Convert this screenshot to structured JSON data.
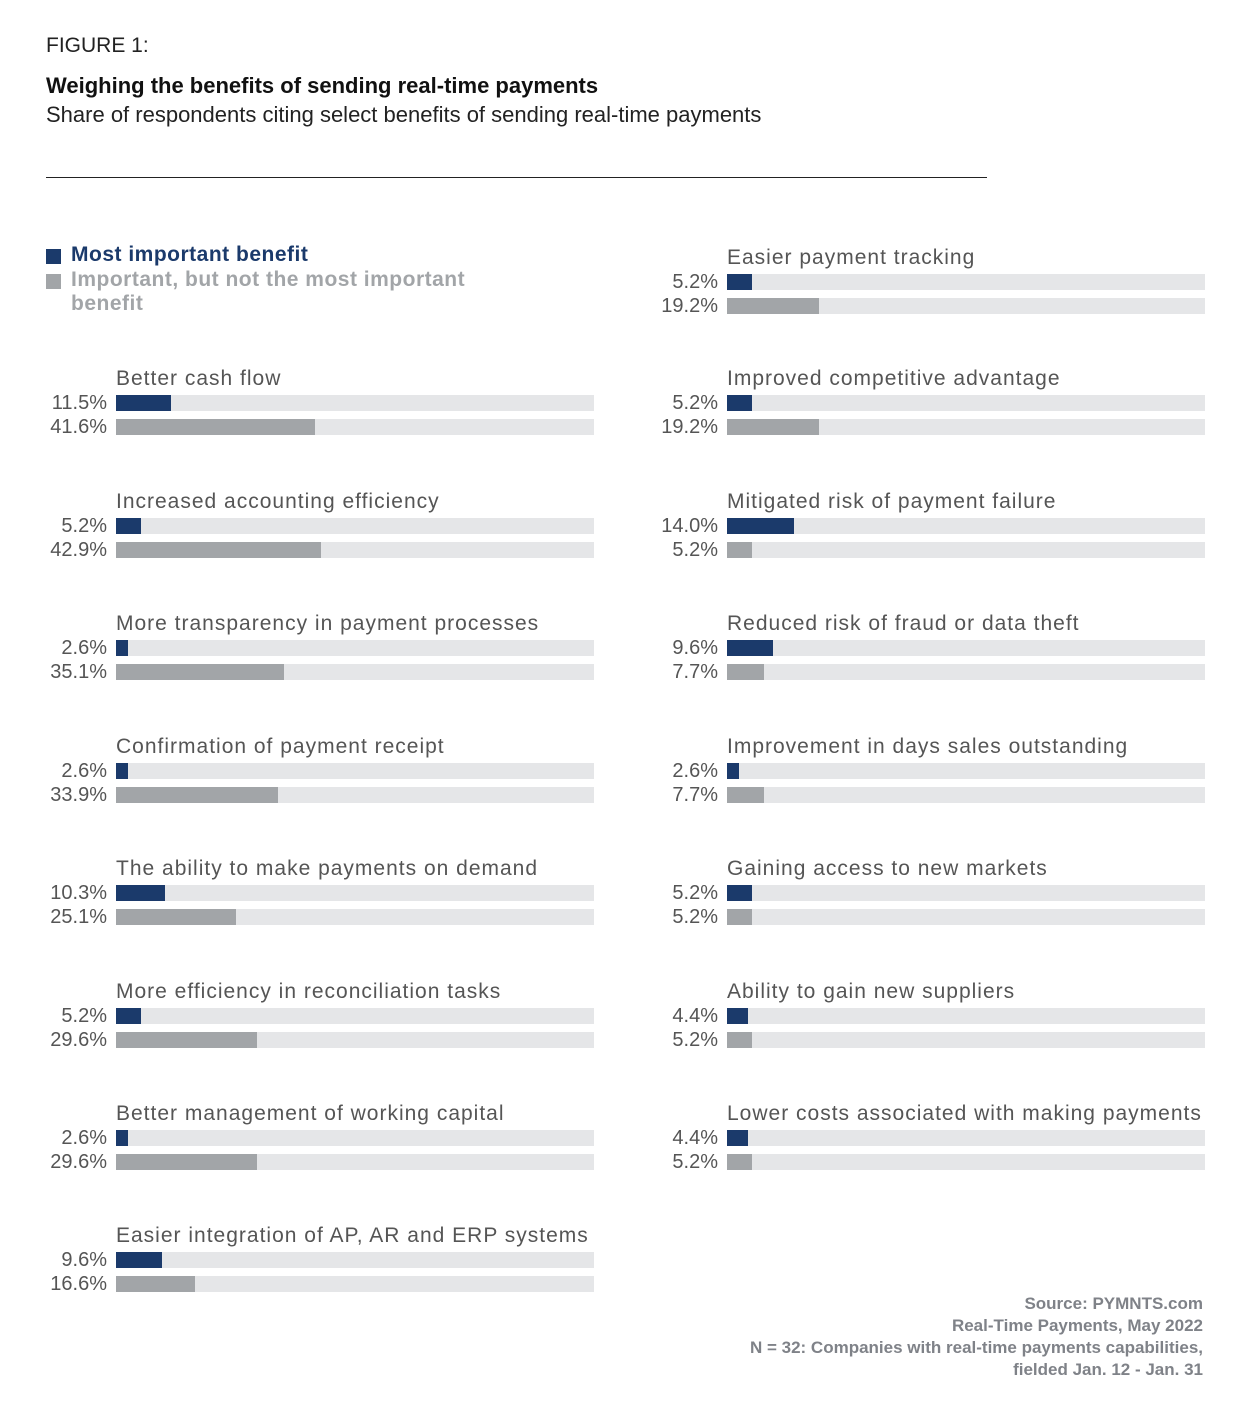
{
  "figure_label": "FIGURE 1:",
  "title": "Weighing the benefits of sending real-time payments",
  "subtitle": "Share of respondents citing select benefits of sending real-time payments",
  "colors": {
    "most": "#1b3a6b",
    "important": "#a2a5a8",
    "track": "#e5e6e8"
  },
  "chart_data": {
    "type": "bar",
    "orientation": "horizontal",
    "xlim": [
      0,
      100
    ],
    "legend": {
      "placement": "top-left",
      "entries": [
        "Most important benefit",
        "Important, but not the most important benefit"
      ]
    },
    "categories": [
      "Better cash flow",
      "Increased accounting efficiency",
      "More transparency in payment processes",
      "Confirmation of payment receipt",
      "The ability to make payments on demand",
      "More efficiency in reconciliation tasks",
      "Better management of working capital",
      "Easier integration of AP, AR and ERP systems",
      "Easier payment tracking",
      "Improved competitive advantage",
      "Mitigated risk of payment failure",
      "Reduced risk of fraud or data theft",
      "Improvement in days sales outstanding",
      "Gaining access to new markets",
      "Ability to gain new suppliers",
      "Lower costs associated with making payments"
    ],
    "series": [
      {
        "name": "Most important benefit",
        "values": [
          11.5,
          5.2,
          2.6,
          2.6,
          10.3,
          5.2,
          2.6,
          9.6,
          5.2,
          5.2,
          14.0,
          9.6,
          2.6,
          5.2,
          4.4,
          4.4
        ],
        "labels": [
          "11.5%",
          "5.2%",
          "2.6%",
          "2.6%",
          "10.3%",
          "5.2%",
          "2.6%",
          "9.6%",
          "5.2%",
          "5.2%",
          "14.0%",
          "9.6%",
          "2.6%",
          "5.2%",
          "4.4%",
          "4.4%"
        ]
      },
      {
        "name": "Important, but not the most important benefit",
        "values": [
          41.6,
          42.9,
          35.1,
          33.9,
          25.1,
          29.6,
          29.6,
          16.6,
          19.2,
          19.2,
          5.2,
          7.7,
          7.7,
          5.2,
          5.2,
          5.2
        ],
        "labels": [
          "41.6%",
          "42.9%",
          "35.1%",
          "33.9%",
          "25.1%",
          "29.6%",
          "29.6%",
          "16.6%",
          "19.2%",
          "19.2%",
          "5.2%",
          "7.7%",
          "7.7%",
          "5.2%",
          "5.2%",
          "5.2%"
        ]
      }
    ]
  },
  "source": {
    "line1": "Source: PYMNTS.com",
    "line2": "Real-Time Payments, May 2022",
    "line3": "N = 32: Companies with real-time payments capabilities,",
    "line4": "fielded Jan. 12 - Jan. 31"
  }
}
